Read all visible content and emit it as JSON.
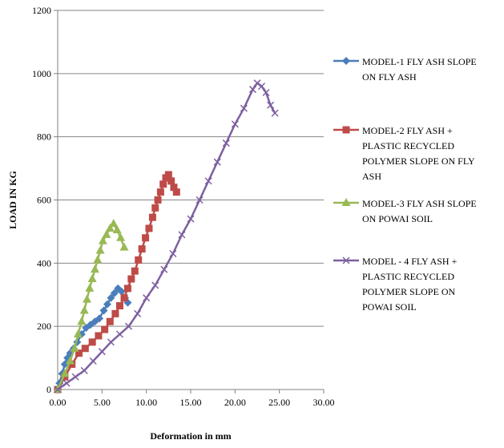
{
  "chart_data": {
    "type": "line",
    "title": "",
    "xlabel": "Deformation in mm",
    "ylabel": "LOAD IN KG",
    "xlim": [
      0,
      30
    ],
    "ylim": [
      0,
      1200
    ],
    "x_ticks": [
      0,
      5,
      10,
      15,
      20,
      25,
      30
    ],
    "x_tick_labels": [
      "0.00",
      "5.00",
      "10.00",
      "15.00",
      "20.00",
      "25.00",
      "30.00"
    ],
    "y_ticks": [
      0,
      200,
      400,
      600,
      800,
      1000,
      1200
    ],
    "y_tick_labels": [
      "0",
      "200",
      "400",
      "600",
      "800",
      "1000",
      "1200"
    ],
    "grid": "horizontal",
    "legend_position": "right",
    "series": [
      {
        "name": "MODEL-1  FLY ASH SLOPE ON FLY ASH",
        "legend_lines": [
          "MODEL-1  FLY ASH SLOPE",
          "ON FLY ASH"
        ],
        "color": "#4a7ebb",
        "marker": "diamond",
        "x": [
          0,
          0.2,
          0.5,
          0.8,
          1.1,
          1.4,
          1.8,
          2.2,
          2.7,
          3.2,
          3.7,
          4.2,
          4.7,
          5.2,
          5.6,
          6.0,
          6.4,
          6.8,
          7.2,
          7.6,
          7.9
        ],
        "y": [
          0,
          20,
          50,
          80,
          100,
          115,
          130,
          150,
          175,
          195,
          205,
          215,
          225,
          250,
          270,
          290,
          305,
          320,
          310,
          290,
          275
        ]
      },
      {
        "name": "MODEL-2 FLY ASH + PLASTIC RECYCLED POLYMER SLOPE ON FLY ASH",
        "legend_lines": [
          "MODEL-2 FLY ASH +",
          "PLASTIC RECYCLED",
          "POLYMER SLOPE ON FLY",
          "ASH"
        ],
        "color": "#be4b48",
        "marker": "square",
        "x": [
          0,
          0.8,
          1.6,
          2.4,
          3.1,
          3.9,
          4.6,
          5.3,
          5.9,
          6.5,
          7.0,
          7.5,
          7.9,
          8.3,
          8.7,
          9.1,
          9.5,
          9.9,
          10.3,
          10.7,
          11.0,
          11.3,
          11.6,
          11.9,
          12.2,
          12.5,
          12.8,
          13.1,
          13.4
        ],
        "y": [
          0,
          40,
          80,
          115,
          130,
          150,
          170,
          190,
          215,
          240,
          265,
          290,
          320,
          350,
          375,
          410,
          445,
          480,
          510,
          545,
          575,
          600,
          625,
          650,
          670,
          680,
          660,
          640,
          625
        ]
      },
      {
        "name": "MODEL-3 FLY ASH SLOPE ON POWAI SOIL",
        "legend_lines": [
          "MODEL-3 FLY ASH SLOPE",
          "ON POWAI SOIL"
        ],
        "color": "#98b954",
        "marker": "triangle",
        "x": [
          0,
          0.8,
          1.4,
          1.9,
          2.3,
          2.7,
          3.0,
          3.3,
          3.6,
          3.9,
          4.2,
          4.5,
          4.8,
          5.1,
          5.5,
          5.9,
          6.3,
          6.7,
          7.1,
          7.5
        ],
        "y": [
          0,
          50,
          90,
          130,
          175,
          215,
          250,
          285,
          320,
          350,
          380,
          410,
          440,
          470,
          490,
          510,
          525,
          505,
          480,
          450
        ]
      },
      {
        "name": "MODEL - 4 FLY ASH + PLASTIC RECYCLED POLYMER SLOPE ON POWAI SOIL",
        "legend_lines": [
          "MODEL - 4 FLY ASH +",
          "PLASTIC RECYCLED",
          "POLYMER SLOPE ON",
          "POWAI SOIL"
        ],
        "color": "#7d60a0",
        "marker": "x",
        "x": [
          0,
          1.0,
          2.0,
          3.0,
          4.0,
          5.0,
          6.0,
          7.0,
          8.0,
          9.0,
          10.0,
          11.0,
          12.0,
          13.0,
          14.0,
          15.0,
          16.0,
          17.0,
          18.0,
          19.0,
          20.0,
          21.0,
          22.0,
          22.5,
          23.0,
          23.5,
          24.0,
          24.5
        ],
        "y": [
          0,
          20,
          40,
          60,
          90,
          120,
          150,
          175,
          200,
          240,
          290,
          330,
          380,
          430,
          490,
          540,
          600,
          660,
          720,
          780,
          840,
          890,
          950,
          970,
          960,
          940,
          900,
          875
        ]
      }
    ]
  }
}
